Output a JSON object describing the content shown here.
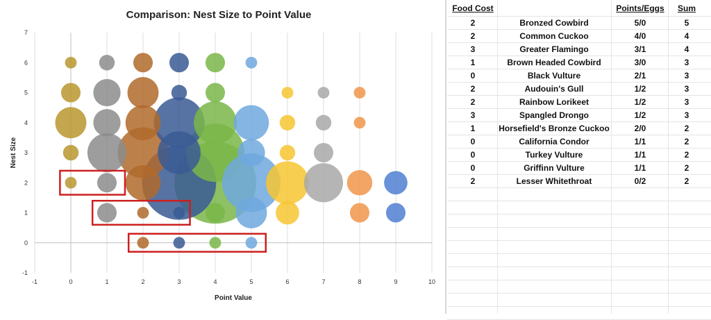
{
  "chart_data": {
    "type": "bubble",
    "title": "Comparison: Nest Size to Point Value",
    "xlabel": "Point Value",
    "ylabel": "Nest Size",
    "xlim": [
      -1,
      10
    ],
    "ylim": [
      -1,
      7
    ],
    "xticks": [
      "-1",
      "0",
      "1",
      "2",
      "3",
      "4",
      "5",
      "6",
      "7",
      "8",
      "9",
      "10"
    ],
    "yticks": [
      "-1",
      "0",
      "1",
      "2",
      "3",
      "4",
      "5",
      "6",
      "7"
    ],
    "grid": "vertical",
    "legend": "none",
    "series": [
      {
        "x": 0,
        "color": "#b8962e",
        "points": [
          [
            6,
            0.6
          ],
          [
            5,
            1.0
          ],
          [
            4,
            1.6
          ],
          [
            3,
            0.8
          ],
          [
            2,
            0.6
          ]
        ]
      },
      {
        "x": 1,
        "color": "#8c8c8c",
        "points": [
          [
            6,
            0.8
          ],
          [
            5,
            1.4
          ],
          [
            4,
            1.4
          ],
          [
            3,
            2.0
          ],
          [
            2,
            1.0
          ],
          [
            1,
            1.0
          ]
        ]
      },
      {
        "x": 2,
        "color": "#b06a2c",
        "points": [
          [
            6,
            1.0
          ],
          [
            5,
            1.6
          ],
          [
            4,
            1.8
          ],
          [
            3,
            2.6
          ],
          [
            2,
            1.8
          ],
          [
            1,
            0.6
          ],
          [
            0,
            0.6
          ]
        ]
      },
      {
        "x": 3,
        "color": "#3a5a94",
        "points": [
          [
            6,
            1.0
          ],
          [
            5,
            0.8
          ],
          [
            4,
            2.6
          ],
          [
            3,
            2.2
          ],
          [
            2,
            3.8
          ],
          [
            1,
            0.6
          ],
          [
            0,
            0.6
          ]
        ]
      },
      {
        "x": 4,
        "color": "#7ab648",
        "points": [
          [
            6,
            1.0
          ],
          [
            5,
            1.0
          ],
          [
            4,
            2.2
          ],
          [
            3,
            3.0
          ],
          [
            2,
            4.2
          ],
          [
            1,
            1.0
          ],
          [
            0,
            0.6
          ]
        ]
      },
      {
        "x": 5,
        "color": "#6ea8de",
        "points": [
          [
            6,
            0.6
          ],
          [
            4,
            1.8
          ],
          [
            3,
            1.4
          ],
          [
            2,
            3.0
          ],
          [
            1,
            1.6
          ],
          [
            0,
            0.6
          ]
        ]
      },
      {
        "x": 6,
        "color": "#f7c531",
        "points": [
          [
            5,
            0.6
          ],
          [
            4,
            0.8
          ],
          [
            3,
            0.8
          ],
          [
            2,
            2.2
          ],
          [
            1,
            1.2
          ]
        ]
      },
      {
        "x": 7,
        "color": "#a8a8a8",
        "points": [
          [
            5,
            0.6
          ],
          [
            4,
            0.8
          ],
          [
            3,
            1.0
          ],
          [
            2,
            2.0
          ]
        ]
      },
      {
        "x": 8,
        "color": "#f0954a",
        "points": [
          [
            5,
            0.6
          ],
          [
            4,
            0.6
          ],
          [
            2,
            1.3
          ],
          [
            1,
            1.0
          ]
        ]
      },
      {
        "x": 9,
        "color": "#4f7fd1",
        "points": [
          [
            2,
            1.2
          ],
          [
            1,
            1.0
          ]
        ]
      }
    ],
    "highlight_boxes": [
      {
        "x_from": -0.3,
        "x_to": 1.5,
        "y_from": 1.6,
        "y_to": 2.4
      },
      {
        "x_from": 0.6,
        "x_to": 3.3,
        "y_from": 0.6,
        "y_to": 1.4
      },
      {
        "x_from": 1.6,
        "x_to": 5.4,
        "y_from": -0.3,
        "y_to": 0.3
      }
    ],
    "highlight_color": "#cc1f1f"
  },
  "table": {
    "headers": [
      "Food Cost",
      "",
      "Points/Eggs",
      "Sum"
    ],
    "rows": [
      [
        "2",
        "Bronzed Cowbird",
        "5/0",
        "5"
      ],
      [
        "2",
        "Common Cuckoo",
        "4/0",
        "4"
      ],
      [
        "3",
        "Greater Flamingo",
        "3/1",
        "4"
      ],
      [
        "1",
        "Brown Headed Cowbird",
        "3/0",
        "3"
      ],
      [
        "0",
        "Black Vulture",
        "2/1",
        "3"
      ],
      [
        "2",
        "Audouin's Gull",
        "1/2",
        "3"
      ],
      [
        "2",
        "Rainbow Lorikeet",
        "1/2",
        "3"
      ],
      [
        "3",
        "Spangled Drongo",
        "1/2",
        "3"
      ],
      [
        "1",
        "Horsefield's Bronze Cuckoo",
        "2/0",
        "2"
      ],
      [
        "0",
        "California Condor",
        "1/1",
        "2"
      ],
      [
        "0",
        "Turkey Vulture",
        "1/1",
        "2"
      ],
      [
        "0",
        "Griffinn Vulture",
        "1/1",
        "2"
      ],
      [
        "2",
        "Lesser Whitethroat",
        "0/2",
        "2"
      ]
    ]
  }
}
